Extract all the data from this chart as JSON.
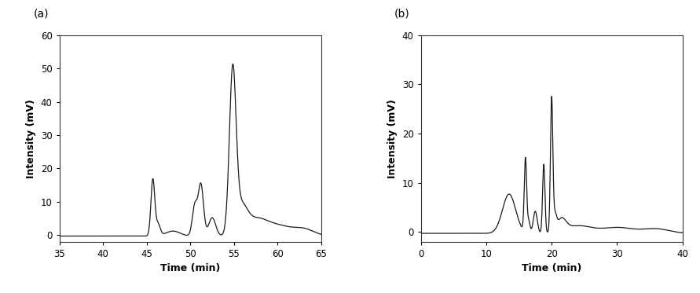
{
  "panel_a": {
    "label": "(a)",
    "xlim": [
      35,
      65
    ],
    "ylim": [
      -2,
      60
    ],
    "xticks": [
      35,
      40,
      45,
      50,
      55,
      60,
      65
    ],
    "yticks": [
      0,
      10,
      20,
      30,
      40,
      50,
      60
    ],
    "xlabel": "Time (min)",
    "ylabel": "Intensity (mV)"
  },
  "panel_b": {
    "label": "(b)",
    "xlim": [
      0,
      40
    ],
    "ylim": [
      -2,
      40
    ],
    "xticks": [
      0,
      10,
      20,
      30,
      40
    ],
    "yticks": [
      0,
      10,
      20,
      30,
      40
    ],
    "xlabel": "Time (min)",
    "ylabel": "Intensity (mV)"
  },
  "line_color": "#1a1a1a",
  "line_width": 0.9,
  "background_color": "#ffffff",
  "label_fontsize": 9,
  "tick_fontsize": 8.5,
  "panel_label_fontsize": 10
}
